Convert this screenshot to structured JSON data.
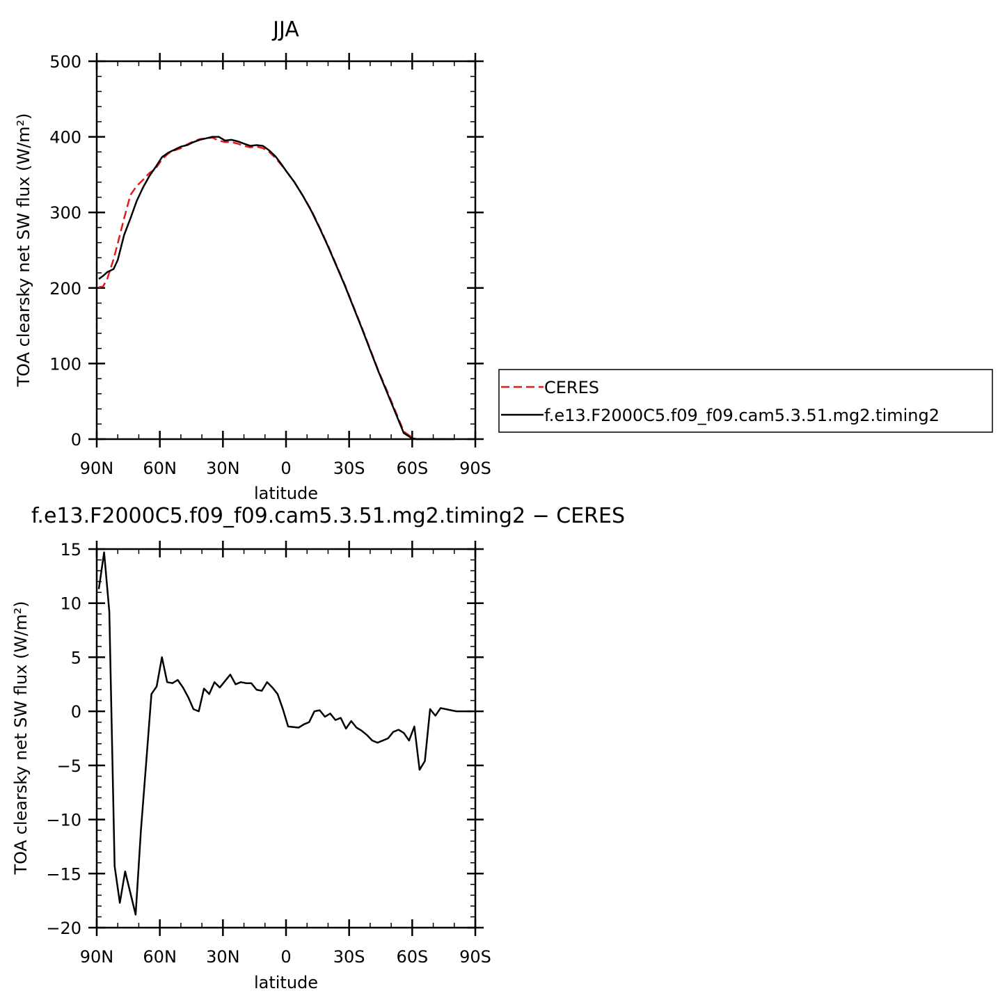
{
  "chart_data": [
    {
      "type": "line",
      "title": "JJA",
      "xlabel": "latitude",
      "ylabel": "TOA clearsky net SW flux (W/m²)",
      "xlim": [
        90,
        -90
      ],
      "ylim": [
        0,
        500
      ],
      "x_ticks": [
        90,
        60,
        30,
        0,
        -30,
        -60,
        -90
      ],
      "x_tick_labels": [
        "90N",
        "60N",
        "30N",
        "0",
        "30S",
        "60S",
        "90S"
      ],
      "y_ticks": [
        0,
        100,
        200,
        300,
        400,
        500
      ],
      "y_tick_labels": [
        "0",
        "100",
        "200",
        "300",
        "400",
        "500"
      ],
      "legend_position": "right",
      "series": [
        {
          "name": "CERES",
          "color": "#e31a1c",
          "dash": "dashed",
          "x": [
            89,
            87,
            85,
            82,
            80,
            77,
            74,
            71,
            68,
            65,
            62,
            59,
            56,
            53,
            50,
            47,
            44,
            41,
            38,
            35,
            32,
            29,
            26,
            23,
            20,
            17,
            14,
            11,
            8,
            5,
            2,
            0,
            -4,
            -8,
            -12,
            -16,
            -20,
            -24,
            -28,
            -32,
            -36,
            -40,
            -44,
            -48,
            -52,
            -56,
            -60,
            -62,
            -64,
            -66,
            -68,
            -70,
            -72,
            -75,
            -78,
            -80
          ],
          "values": [
            201,
            202,
            212,
            238,
            259,
            292,
            323,
            335,
            343,
            352,
            358,
            370,
            378,
            382,
            385,
            390,
            394,
            397,
            398,
            399,
            395,
            393,
            393,
            391,
            388,
            386,
            387,
            385,
            380,
            372,
            362,
            355,
            340,
            322,
            303,
            280,
            256,
            230,
            204,
            176,
            148,
            119,
            90,
            64,
            37,
            10,
            2,
            0,
            0,
            0,
            0,
            0,
            0,
            0,
            0,
            0
          ]
        },
        {
          "name": "f.e13.F2000C5.f09_f09.cam5.3.51.mg2.timing2",
          "color": "#000000",
          "dash": "solid",
          "x": [
            89,
            87,
            85,
            82,
            80,
            77,
            74,
            71,
            68,
            65,
            62,
            59,
            56,
            53,
            50,
            47,
            44,
            41,
            38,
            35,
            32,
            29,
            26,
            23,
            20,
            17,
            14,
            11,
            8,
            5,
            2,
            0,
            -4,
            -8,
            -12,
            -16,
            -20,
            -24,
            -28,
            -32,
            -36,
            -40,
            -44,
            -48,
            -52,
            -56,
            -60,
            -62,
            -64,
            -66,
            -68,
            -70,
            -72,
            -75,
            -78,
            -80
          ],
          "values": [
            212,
            216,
            221,
            225,
            237,
            270,
            292,
            315,
            333,
            348,
            360,
            373,
            379,
            383,
            387,
            389,
            393,
            396,
            398,
            400,
            400,
            395,
            396,
            394,
            391,
            388,
            389,
            388,
            382,
            374,
            363,
            355,
            340,
            322,
            302,
            279,
            255,
            229,
            203,
            175,
            147,
            118,
            89,
            62,
            35,
            8,
            1,
            0,
            0,
            0,
            0,
            0,
            0,
            0,
            0,
            0
          ]
        }
      ]
    },
    {
      "type": "line",
      "title": "f.e13.F2000C5.f09_f09.cam5.3.51.mg2.timing2 − CERES",
      "xlabel": "latitude",
      "ylabel": "TOA clearsky net SW flux (W/m²)",
      "xlim": [
        90,
        -90
      ],
      "ylim": [
        -20,
        15
      ],
      "x_ticks": [
        90,
        60,
        30,
        0,
        -30,
        -60,
        -90
      ],
      "x_tick_labels": [
        "90N",
        "60N",
        "30N",
        "0",
        "30S",
        "60S",
        "90S"
      ],
      "y_ticks": [
        -20,
        -15,
        -10,
        -5,
        0,
        5,
        10,
        15
      ],
      "y_tick_labels": [
        "−20",
        "−15",
        "−10",
        "−5",
        "0",
        "5",
        "10",
        "15"
      ],
      "series": [
        {
          "color": "#000000",
          "dash": "solid",
          "x": [
            89,
            86.5,
            84,
            81.5,
            79,
            76.5,
            74,
            71.5,
            69,
            66.5,
            64,
            61.5,
            59,
            56.5,
            54,
            51.5,
            49,
            46.5,
            44,
            41.5,
            39,
            36.5,
            34,
            31.5,
            29,
            26.5,
            24,
            21.5,
            19,
            16.5,
            14,
            11.5,
            9,
            6.5,
            4,
            1.5,
            -1,
            -3.5,
            -6,
            -8.5,
            -11,
            -13.5,
            -16,
            -18.5,
            -21,
            -23.5,
            -26,
            -28.5,
            -31,
            -33.5,
            -36,
            -38.5,
            -41,
            -43.5,
            -46,
            -48.5,
            -51,
            -53.5,
            -56,
            -58.5,
            -61,
            -63.5,
            -66,
            -68.5,
            -71,
            -73.5,
            -76,
            -78.5,
            -81,
            -83.5,
            -86,
            -88.5
          ],
          "values": [
            11.3,
            14.7,
            9.2,
            -14.3,
            -17.7,
            -14.8,
            -16.8,
            -18.8,
            -11.0,
            -4.8,
            1.6,
            2.3,
            5.0,
            2.7,
            2.6,
            2.9,
            2.2,
            1.3,
            0.2,
            0.0,
            2.1,
            1.6,
            2.7,
            2.2,
            2.8,
            3.4,
            2.5,
            2.7,
            2.6,
            2.6,
            2.0,
            1.9,
            2.7,
            2.2,
            1.6,
            0.2,
            -1.4,
            -1.45,
            -1.5,
            -1.2,
            -1.0,
            0.0,
            0.1,
            -0.5,
            -0.2,
            -0.8,
            -0.6,
            -1.6,
            -0.9,
            -1.5,
            -1.8,
            -2.2,
            -2.7,
            -2.9,
            -2.7,
            -2.5,
            -1.9,
            -1.7,
            -2.0,
            -2.7,
            -1.4,
            -5.4,
            -4.6,
            0.2,
            -0.4,
            0.3,
            0.2,
            0.1,
            0.0,
            0.0,
            0.0,
            0.0
          ]
        }
      ]
    }
  ]
}
